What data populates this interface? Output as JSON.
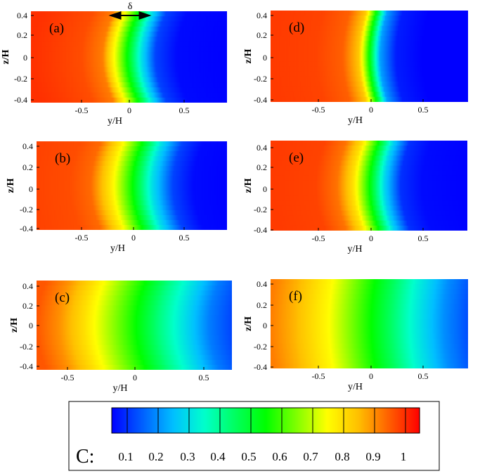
{
  "chart_data": [
    {
      "type": "heatmap",
      "panel_label": "(a)",
      "xlabel": "y/H",
      "ylabel": "z/H",
      "xlim": [
        -0.93,
        0.93
      ],
      "ylim": [
        -0.43,
        0.43
      ],
      "xticks": [
        "-0.5",
        "0",
        "0.5"
      ],
      "yticks": [
        "0.4",
        "0.2",
        "0",
        "-0.2",
        "-0.4"
      ],
      "profile": {
        "y": [
          -0.93,
          -0.75,
          -0.45,
          -0.25,
          -0.12,
          0,
          0.12,
          0.25,
          0.45,
          0.93
        ],
        "c": [
          1.0,
          0.99,
          0.97,
          0.92,
          0.72,
          0.52,
          0.3,
          0.12,
          0.06,
          0.05
        ]
      },
      "curvature": 0.11,
      "annotation": {
        "symbol": "δ",
        "y_from": -0.1,
        "y_to": 0.12
      }
    },
    {
      "type": "heatmap",
      "panel_label": "(b)",
      "xlabel": "y/H",
      "ylabel": "z/H",
      "xlim": [
        -0.93,
        0.93
      ],
      "ylim": [
        -0.43,
        0.43
      ],
      "xticks": [
        "-0.5",
        "0",
        "0.5"
      ],
      "yticks": [
        "0.4",
        "0.2",
        "0",
        "-0.2",
        "-0.4"
      ],
      "profile": {
        "y": [
          -0.93,
          -0.6,
          -0.4,
          -0.2,
          0,
          0.2,
          0.4,
          0.6,
          0.93
        ],
        "c": [
          0.98,
          0.97,
          0.94,
          0.78,
          0.56,
          0.3,
          0.12,
          0.06,
          0.05
        ]
      },
      "curvature": 0.1
    },
    {
      "type": "heatmap",
      "panel_label": "(c)",
      "xlabel": "y/H",
      "ylabel": "z/H",
      "xlim": [
        -0.78,
        0.78
      ],
      "ylim": [
        -0.43,
        0.43
      ],
      "xticks": [
        "-0.5",
        "0",
        "0.5"
      ],
      "yticks": [
        "0.4",
        "0.2",
        "0",
        "-0.2",
        "-0.4"
      ],
      "profile": {
        "y": [
          -0.78,
          -0.6,
          -0.4,
          -0.2,
          0,
          0.2,
          0.4,
          0.6,
          0.78
        ],
        "c": [
          0.96,
          0.9,
          0.8,
          0.68,
          0.56,
          0.42,
          0.3,
          0.18,
          0.12
        ]
      },
      "curvature": 0.08
    },
    {
      "type": "heatmap",
      "panel_label": "(d)",
      "xlabel": "y/H",
      "ylabel": "z/H",
      "xlim": [
        -0.93,
        0.93
      ],
      "ylim": [
        -0.43,
        0.43
      ],
      "xticks": [
        "-0.5",
        "0",
        "0.5"
      ],
      "yticks": [
        "0.4",
        "0.2",
        "0",
        "-0.2",
        "-0.4"
      ],
      "profile": {
        "y": [
          -0.93,
          -0.5,
          -0.25,
          -0.1,
          0,
          0.1,
          0.25,
          0.5,
          0.93
        ],
        "c": [
          0.99,
          0.98,
          0.95,
          0.84,
          0.55,
          0.22,
          0.08,
          0.05,
          0.05
        ]
      },
      "curvature": 0.07
    },
    {
      "type": "heatmap",
      "panel_label": "(e)",
      "xlabel": "y/H",
      "ylabel": "z/H",
      "xlim": [
        -0.93,
        0.93
      ],
      "ylim": [
        -0.43,
        0.43
      ],
      "xticks": [
        "-0.5",
        "0",
        "0.5"
      ],
      "yticks": [
        "0.4",
        "0.2",
        "0",
        "-0.2",
        "-0.4"
      ],
      "profile": {
        "y": [
          -0.93,
          -0.5,
          -0.3,
          -0.15,
          0,
          0.15,
          0.3,
          0.5,
          0.93
        ],
        "c": [
          0.99,
          0.98,
          0.93,
          0.8,
          0.56,
          0.28,
          0.1,
          0.06,
          0.05
        ]
      },
      "curvature": 0.09
    },
    {
      "type": "heatmap",
      "panel_label": "(f)",
      "xlabel": "y/H",
      "ylabel": "z/H",
      "xlim": [
        -0.93,
        0.93
      ],
      "ylim": [
        -0.43,
        0.43
      ],
      "xticks": [
        "-0.5",
        "0",
        "0.5"
      ],
      "yticks": [
        "0.4",
        "0.2",
        "0",
        "-0.2",
        "-0.4"
      ],
      "profile": {
        "y": [
          -0.93,
          -0.7,
          -0.4,
          -0.2,
          0,
          0.2,
          0.4,
          0.7,
          0.93
        ],
        "c": [
          0.92,
          0.86,
          0.76,
          0.66,
          0.56,
          0.45,
          0.34,
          0.2,
          0.13
        ]
      },
      "curvature": 0.04
    }
  ],
  "colorbar": {
    "title": "C:",
    "labels": [
      "0.1",
      "0.2",
      "0.3",
      "0.4",
      "0.5",
      "0.6",
      "0.7",
      "0.8",
      "0.9",
      "1"
    ],
    "range": [
      0.05,
      1.05
    ],
    "colors": [
      "#0000ff",
      "#0060ff",
      "#00bfff",
      "#00ffcc",
      "#00ff60",
      "#00ff00",
      "#80ff00",
      "#ffff00",
      "#ffc000",
      "#ff6000",
      "#ff0000"
    ]
  }
}
